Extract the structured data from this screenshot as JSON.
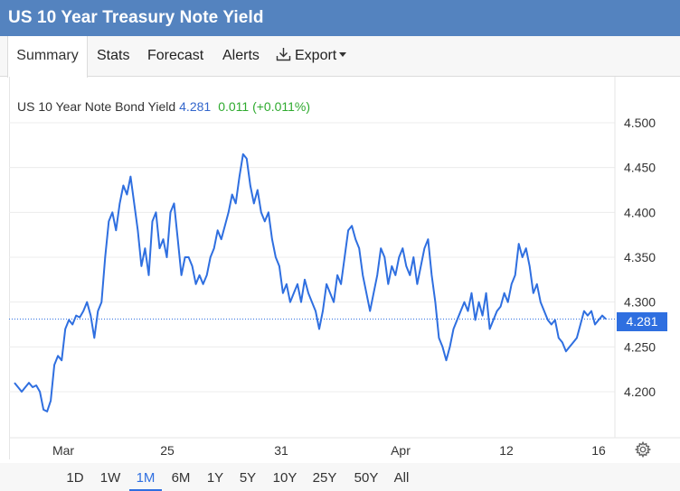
{
  "header": {
    "title": "US 10 Year Treasury Note Yield"
  },
  "tabs": [
    {
      "label": "Summary",
      "active": true
    },
    {
      "label": "Stats"
    },
    {
      "label": "Forecast"
    },
    {
      "label": "Alerts"
    },
    {
      "label": "Export",
      "icon": "download-icon"
    }
  ],
  "quote": {
    "name": "US 10 Year Note Bond Yield",
    "last": "4.281",
    "change": "0.011 (+0.011%)",
    "change_color": "#2eaa2e",
    "last_badge": "4.281"
  },
  "ranges": [
    "1D",
    "1W",
    "1M",
    "6M",
    "1Y",
    "5Y",
    "10Y",
    "25Y",
    "50Y",
    "All"
  ],
  "active_range": "1M",
  "colors": {
    "line": "#2f6fe0",
    "titlebar": "#5483bf",
    "badge": "#2f6fe0"
  },
  "chart_data": {
    "type": "line",
    "series": [
      {
        "values": [
          4.21,
          4.205,
          4.2,
          4.205,
          4.21,
          4.205,
          4.207,
          4.2,
          4.18,
          4.178,
          4.19,
          4.23,
          4.24,
          4.235,
          4.27,
          4.28,
          4.275,
          4.285,
          4.283,
          4.29,
          4.3,
          4.285,
          4.26,
          4.29,
          4.3,
          4.35,
          4.39,
          4.4,
          4.38,
          4.41,
          4.43,
          4.42,
          4.44,
          4.41,
          4.38,
          4.34,
          4.36,
          4.33,
          4.39,
          4.4,
          4.36,
          4.37,
          4.35,
          4.4,
          4.41,
          4.37,
          4.33,
          4.35,
          4.35,
          4.34,
          4.32,
          4.33,
          4.32,
          4.33,
          4.35,
          4.36,
          4.38,
          4.37,
          4.385,
          4.4,
          4.42,
          4.41,
          4.44,
          4.465,
          4.46,
          4.43,
          4.41,
          4.425,
          4.4,
          4.39,
          4.4,
          4.37,
          4.35,
          4.34,
          4.31,
          4.32,
          4.3,
          4.31,
          4.32,
          4.3,
          4.325,
          4.31,
          4.3,
          4.29,
          4.27,
          4.29,
          4.32,
          4.31,
          4.3,
          4.33,
          4.32,
          4.35,
          4.38,
          4.385,
          4.37,
          4.36,
          4.33,
          4.31,
          4.29,
          4.31,
          4.33,
          4.36,
          4.35,
          4.32,
          4.34,
          4.33,
          4.35,
          4.36,
          4.34,
          4.33,
          4.35,
          4.32,
          4.34,
          4.36,
          4.37,
          4.33,
          4.3,
          4.26,
          4.25,
          4.235,
          4.25,
          4.27,
          4.28,
          4.29,
          4.3,
          4.29,
          4.31,
          4.28,
          4.3,
          4.285,
          4.31,
          4.27,
          4.28,
          4.29,
          4.295,
          4.31,
          4.3,
          4.32,
          4.33,
          4.365,
          4.35,
          4.36,
          4.34,
          4.31,
          4.32,
          4.3,
          4.29,
          4.28,
          4.275,
          4.28,
          4.26,
          4.255,
          4.245,
          4.25,
          4.255,
          4.26,
          4.275,
          4.29,
          4.285,
          4.29,
          4.275,
          4.28,
          4.285,
          4.281
        ]
      }
    ],
    "x_tick_labels": [
      "Mar",
      "25",
      "31",
      "Apr",
      "12",
      "16"
    ],
    "y_ticks": [
      "4.200",
      "4.250",
      "4.300",
      "4.350",
      "4.400",
      "4.450",
      "4.500"
    ],
    "ylim": [
      4.15,
      4.52
    ],
    "reference_line": 4.281,
    "grid": true
  }
}
